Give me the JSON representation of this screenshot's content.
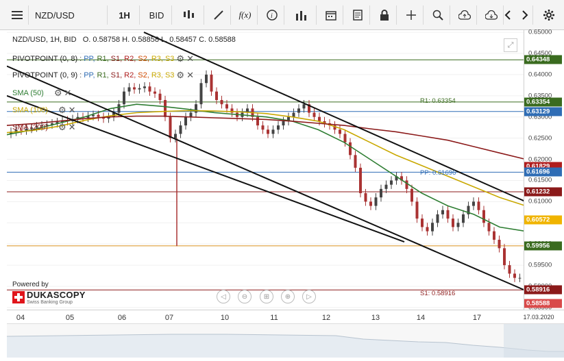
{
  "toolbar": {
    "symbol": "NZD/USD",
    "timeframe": "1H",
    "price_type": "BID",
    "function_label": "f(x)"
  },
  "info": {
    "title": "NZD/USD, 1H, BID",
    "ohlc": "O. 0.58758 H. 0.58858 L. 0.58457 C. 0.58588"
  },
  "indicators": [
    {
      "name": "PIVOTPOINT (0, 8)",
      "levels": [
        "PP,",
        "R1,",
        "S1,",
        "R2,",
        "S2,",
        "R3,",
        "S3"
      ]
    },
    {
      "name": "PIVOTPOINT (0, 9)",
      "levels": [
        "PP,",
        "R1,",
        "S1,",
        "R2,",
        "S2,",
        "R3,",
        "S3"
      ]
    },
    {
      "name": "SMA (50)",
      "color": "#2e7d32"
    },
    {
      "name": "SMA (100)",
      "color": "#c9a800"
    },
    {
      "name": "SMA (200)",
      "color": "#8b1a1a"
    }
  ],
  "pivot_labels": {
    "r1": "R1: 0.63354",
    "pp": "PP: 0.61696",
    "s1": "S1: 0.58916"
  },
  "y_axis": [
    "0.65000",
    "0.64500",
    "0.64000",
    "0.63500",
    "0.63000",
    "0.62500",
    "0.62000",
    "0.61500",
    "0.61000",
    "0.60500",
    "0.60000",
    "0.59500",
    "0.59000",
    "0.58500"
  ],
  "price_tags": [
    {
      "value": "0.64348",
      "color": "#3a6b1f"
    },
    {
      "value": "0.63354",
      "color": "#3a6b1f"
    },
    {
      "value": "0.63129",
      "color": "#2f6db5"
    },
    {
      "value": "0.61829",
      "color": "#b01e1e"
    },
    {
      "value": "0.61696",
      "color": "#2f6db5"
    },
    {
      "value": "0.61232",
      "color": "#8b1a1a"
    },
    {
      "value": "0.60572",
      "color": "#f0b400"
    },
    {
      "value": "0.59956",
      "color": "#3a6b1f"
    },
    {
      "value": "0.58916",
      "color": "#8b1a1a"
    },
    {
      "value": "0.58588",
      "color": "#d94a4a"
    }
  ],
  "x_axis": [
    "04",
    "05",
    "06",
    "07",
    "10",
    "11",
    "12",
    "13",
    "14",
    "17",
    "17.03.2020"
  ],
  "branding": {
    "powered": "Powered by",
    "name": "DUKASCOPY",
    "sub": "Swiss Banking Group"
  }
}
